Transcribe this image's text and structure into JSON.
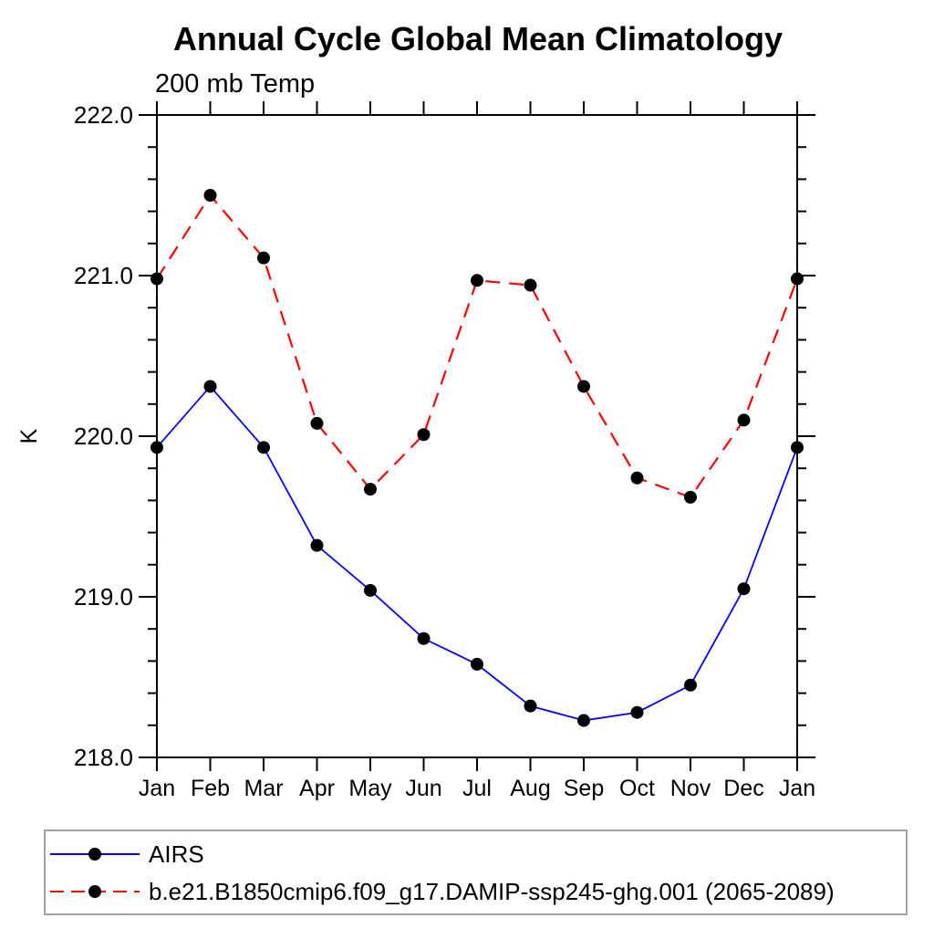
{
  "chart_data": {
    "type": "line",
    "title": "Annual Cycle Global Mean Climatology",
    "subtitle": "200 mb Temp",
    "ylabel": "K",
    "categories": [
      "Jan",
      "Feb",
      "Mar",
      "Apr",
      "May",
      "Jun",
      "Jul",
      "Aug",
      "Sep",
      "Oct",
      "Nov",
      "Dec",
      "Jan"
    ],
    "series": [
      {
        "name": "AIRS",
        "color": "#0000ff",
        "line_style": "solid",
        "marker": "filled-circle",
        "marker_color": "#000000",
        "values": [
          219.93,
          220.31,
          219.93,
          219.32,
          219.04,
          218.74,
          218.58,
          218.32,
          218.23,
          218.28,
          218.45,
          219.05,
          219.93
        ]
      },
      {
        "name": "b.e21.B1850cmip6.f09_g17.DAMIP-ssp245-ghg.001 (2065-2089)",
        "color": "#ff0000",
        "line_style": "dashed",
        "marker": "filled-circle",
        "marker_color": "#000000",
        "values": [
          220.98,
          221.5,
          221.11,
          220.08,
          219.67,
          220.01,
          220.97,
          220.94,
          220.31,
          219.74,
          219.62,
          220.1,
          220.98
        ]
      }
    ],
    "ylim": [
      218.0,
      222.0
    ],
    "y_major_step": 1.0,
    "y_minor_step": 0.2,
    "y_tick_labels": [
      "218.0",
      "219.0",
      "220.0",
      "221.0",
      "222.0"
    ],
    "grid": false,
    "legend_position": "bottom-left boxed"
  }
}
